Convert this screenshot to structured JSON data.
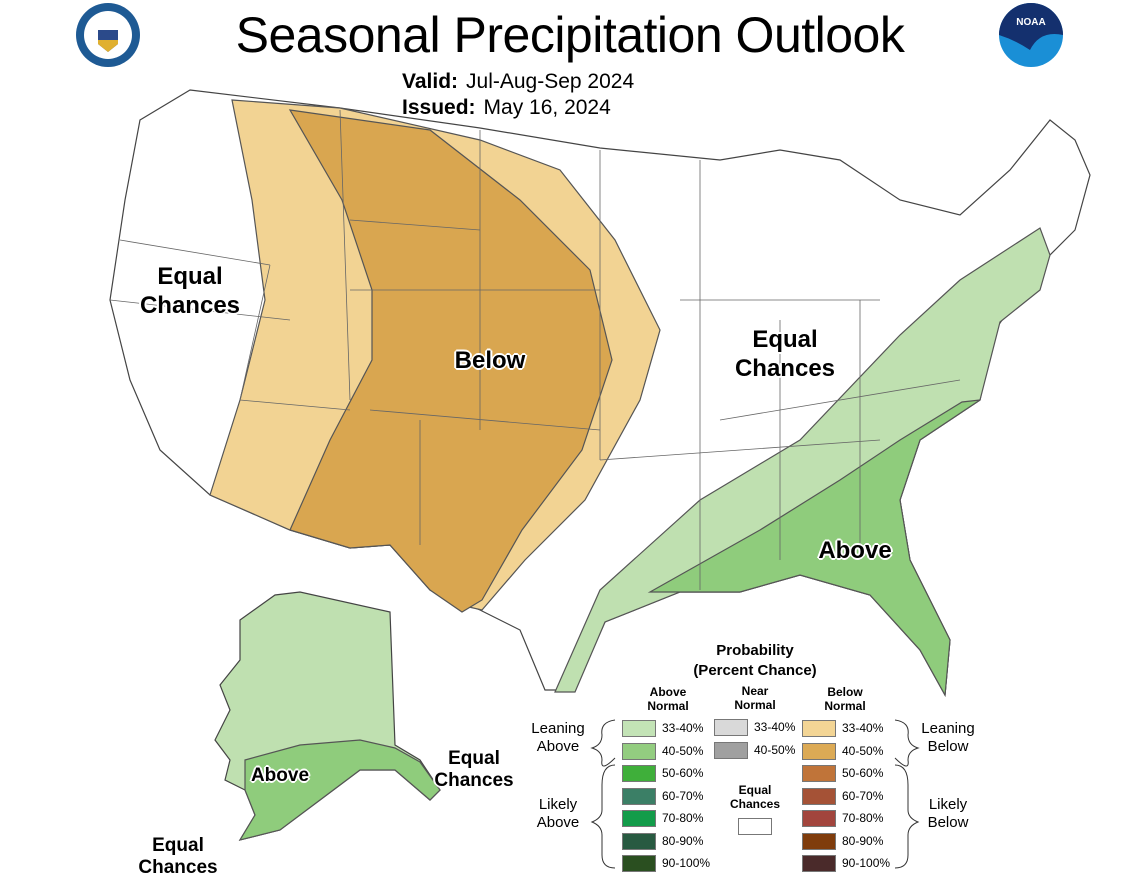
{
  "header": {
    "title": "Seasonal Precipitation Outlook",
    "valid_label": "Valid:",
    "valid_value": "Jul-Aug-Sep 2024",
    "issued_label": "Issued:",
    "issued_value": "May 16, 2024",
    "left_logo": "Department of Commerce seal",
    "right_logo_text": "NOAA"
  },
  "map_labels": {
    "west_equal": "Equal Chances",
    "below": "Below",
    "east_equal": "Equal Chances",
    "above": "Above",
    "alaska_above": "Above",
    "alaska_east_equal": "Equal Chances",
    "alaska_southwest_equal": "Equal Chances"
  },
  "colors": {
    "below_33_40": "#f2d393",
    "below_40_50": "#d9a650",
    "above_33_40": "#bfe0b0",
    "above_40_50": "#8fcc7c",
    "boundary": "#555555"
  },
  "legend": {
    "title": "Probability",
    "subtitle": "(Percent Chance)",
    "above_header": "Above Normal",
    "near_header": "Near Normal",
    "below_header": "Below Normal",
    "leaning_above": "Leaning Above",
    "likely_above": "Likely Above",
    "leaning_below": "Leaning Below",
    "likely_below": "Likely Below",
    "equal_chances": "Equal Chances",
    "above": [
      {
        "range": "33-40%",
        "color": "#c3e3b6"
      },
      {
        "range": "40-50%",
        "color": "#93cd80"
      },
      {
        "range": "50-60%",
        "color": "#3faf3a"
      },
      {
        "range": "60-70%",
        "color": "#3b7f66"
      },
      {
        "range": "70-80%",
        "color": "#139c4a"
      },
      {
        "range": "80-90%",
        "color": "#285a41"
      },
      {
        "range": "90-100%",
        "color": "#2a4f20"
      }
    ],
    "near": [
      {
        "range": "33-40%",
        "color": "#d9d9d9"
      },
      {
        "range": "40-50%",
        "color": "#a0a0a0"
      }
    ],
    "below": [
      {
        "range": "33-40%",
        "color": "#f3d595"
      },
      {
        "range": "40-50%",
        "color": "#dcaa55"
      },
      {
        "range": "50-60%",
        "color": "#c07439"
      },
      {
        "range": "60-70%",
        "color": "#a55236"
      },
      {
        "range": "70-80%",
        "color": "#a2453d"
      },
      {
        "range": "80-90%",
        "color": "#7f3c0c"
      },
      {
        "range": "90-100%",
        "color": "#4a2a2a"
      }
    ]
  }
}
